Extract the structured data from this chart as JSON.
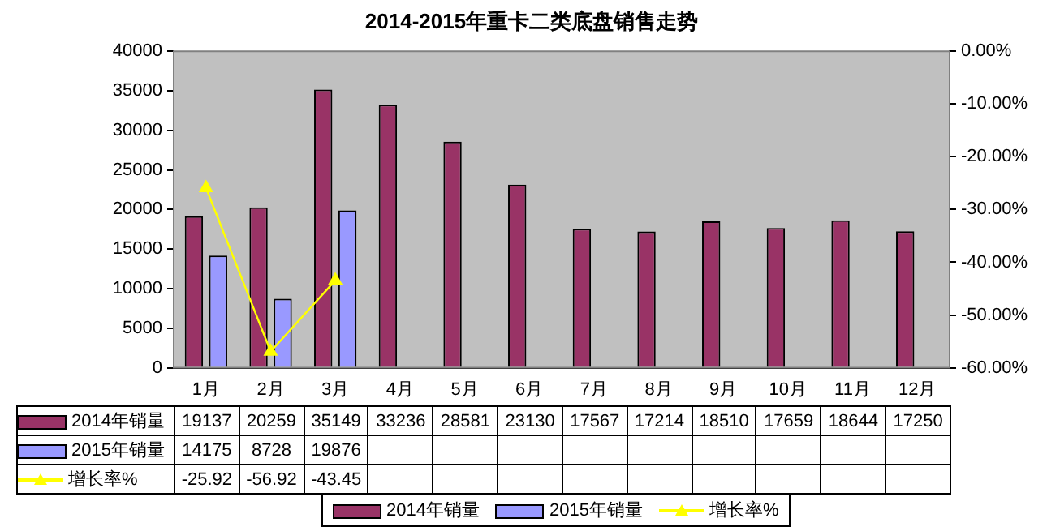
{
  "chart_data": {
    "type": "bar",
    "title": "2014-2015年重卡二类底盘销售走势",
    "categories": [
      "1月",
      "2月",
      "3月",
      "4月",
      "5月",
      "6月",
      "7月",
      "8月",
      "9月",
      "10月",
      "11月",
      "12月"
    ],
    "series": [
      {
        "name": "2014年销量",
        "color": "#993366",
        "values": [
          19137,
          20259,
          35149,
          33236,
          28581,
          23130,
          17567,
          17214,
          18510,
          17659,
          18644,
          17250
        ]
      },
      {
        "name": "2015年销量",
        "color": "#9999ff",
        "values": [
          14175,
          8728,
          19876,
          null,
          null,
          null,
          null,
          null,
          null,
          null,
          null,
          null
        ]
      },
      {
        "name": "增长率%",
        "type": "line",
        "axis": "y2",
        "color": "#ffff00",
        "marker": "triangle",
        "values": [
          -25.92,
          -56.92,
          -43.45,
          null,
          null,
          null,
          null,
          null,
          null,
          null,
          null,
          null
        ]
      }
    ],
    "ylim": [
      0,
      40000
    ],
    "yticks": [
      0,
      5000,
      10000,
      15000,
      20000,
      25000,
      30000,
      35000,
      40000
    ],
    "y2lim": [
      -60,
      0
    ],
    "y2ticks": [
      {
        "value": -60,
        "label": "-60.00%"
      },
      {
        "value": -50,
        "label": "-50.00%"
      },
      {
        "value": -40,
        "label": "-40.00%"
      },
      {
        "value": -30,
        "label": "-30.00%"
      },
      {
        "value": -20,
        "label": "-20.00%"
      },
      {
        "value": -10,
        "label": "-10.00%"
      },
      {
        "value": 0,
        "label": "0.00%"
      }
    ],
    "data_labels": true,
    "legend": "bottom"
  }
}
